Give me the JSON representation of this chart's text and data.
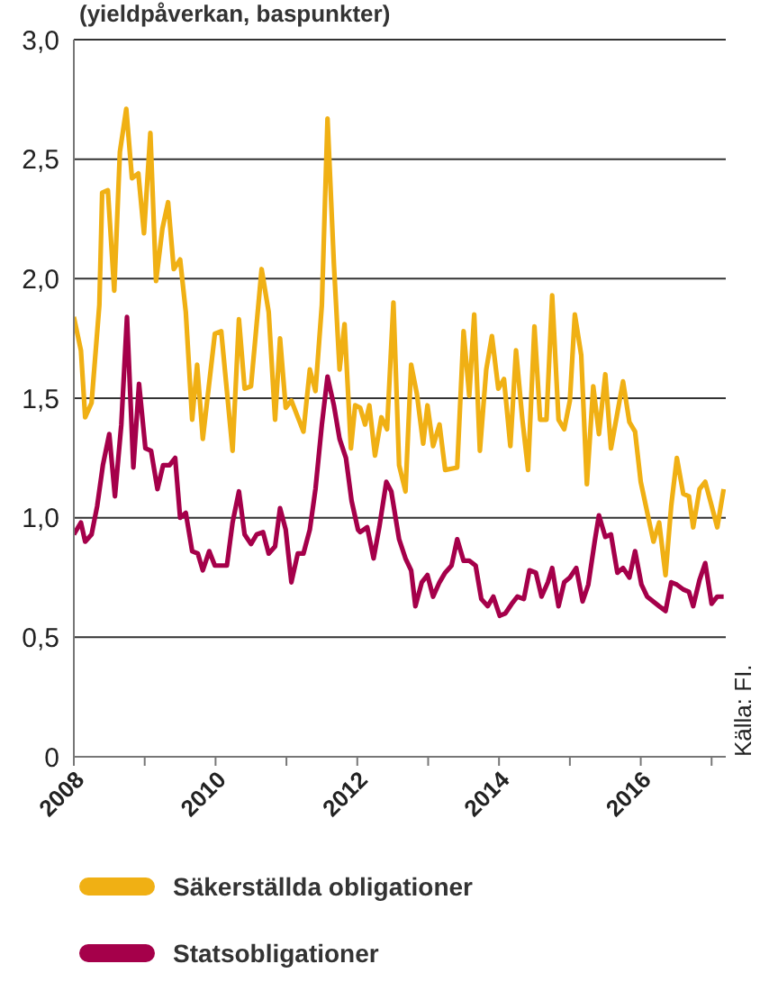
{
  "chart_data": {
    "type": "line",
    "title": "(yieldpåverkan, baspunkter)",
    "annotations": [
      "Källa: FI."
    ],
    "xlim": [
      2008,
      2017.2
    ],
    "xticks": [
      2008,
      {
        "value": 2009,
        "label": null
      },
      2010,
      {
        "value": 2011,
        "label": null
      },
      2012,
      {
        "value": 2013,
        "label": null
      },
      2014,
      {
        "value": 2015,
        "label": null
      },
      2016,
      {
        "value": 2017,
        "label": null
      }
    ],
    "ylim": [
      0,
      3
    ],
    "yticks": [
      {
        "value": 0,
        "label": "0"
      },
      {
        "value": 0.5,
        "label": "0,5"
      },
      {
        "value": 1,
        "label": "1,0"
      },
      {
        "value": 1.5,
        "label": "1,5"
      },
      {
        "value": 2,
        "label": "2,0"
      },
      {
        "value": 2.5,
        "label": "2,5"
      },
      {
        "value": 3,
        "label": "3,0"
      }
    ],
    "grid": "y",
    "legend": "bottom",
    "marker": "none",
    "line_style": "solid",
    "series": [
      {
        "name": "Säkerställda obligationer",
        "color": "#f0b014",
        "x": [
          2008.0,
          2008.1,
          2008.16,
          2008.25,
          2008.36,
          2008.4,
          2008.48,
          2008.57,
          2008.65,
          2008.74,
          2008.82,
          2008.91,
          2008.99,
          2009.08,
          2009.16,
          2009.25,
          2009.33,
          2009.41,
          2009.5,
          2009.58,
          2009.67,
          2009.74,
          2009.82,
          2009.99,
          2010.08,
          2010.24,
          2010.33,
          2010.41,
          2010.5,
          2010.65,
          2010.75,
          2010.84,
          2010.91,
          2010.99,
          2011.07,
          2011.24,
          2011.33,
          2011.41,
          2011.5,
          2011.58,
          2011.67,
          2011.75,
          2011.82,
          2011.91,
          2011.97,
          2012.04,
          2012.11,
          2012.17,
          2012.25,
          2012.34,
          2012.42,
          2012.51,
          2012.59,
          2012.68,
          2012.76,
          2012.84,
          2012.93,
          2012.99,
          2013.07,
          2013.16,
          2013.24,
          2013.41,
          2013.5,
          2013.58,
          2013.65,
          2013.73,
          2013.82,
          2013.9,
          2013.99,
          2014.07,
          2014.16,
          2014.24,
          2014.33,
          2014.41,
          2014.5,
          2014.58,
          2014.67,
          2014.75,
          2014.84,
          2014.92,
          2015.0,
          2015.07,
          2015.16,
          2015.24,
          2015.33,
          2015.41,
          2015.5,
          2015.58,
          2015.75,
          2015.84,
          2015.92,
          2016.0,
          2016.18,
          2016.26,
          2016.35,
          2016.43,
          2016.51,
          2016.6,
          2016.68,
          2016.74,
          2016.83,
          2016.91,
          2017.0,
          2017.08,
          2017.17
        ],
        "values": [
          1.84,
          1.7,
          1.42,
          1.48,
          1.89,
          2.36,
          2.37,
          1.95,
          2.53,
          2.71,
          2.42,
          2.44,
          2.19,
          2.61,
          1.99,
          2.21,
          2.32,
          2.04,
          2.08,
          1.86,
          1.41,
          1.64,
          1.33,
          1.77,
          1.78,
          1.28,
          1.83,
          1.54,
          1.55,
          2.04,
          1.86,
          1.41,
          1.75,
          1.46,
          1.49,
          1.36,
          1.62,
          1.53,
          1.89,
          2.67,
          2.06,
          1.62,
          1.81,
          1.29,
          1.47,
          1.46,
          1.39,
          1.47,
          1.26,
          1.42,
          1.37,
          1.9,
          1.22,
          1.11,
          1.64,
          1.52,
          1.31,
          1.47,
          1.3,
          1.39,
          1.2,
          1.21,
          1.78,
          1.51,
          1.85,
          1.28,
          1.62,
          1.76,
          1.54,
          1.58,
          1.3,
          1.7,
          1.41,
          1.2,
          1.8,
          1.41,
          1.41,
          1.93,
          1.41,
          1.37,
          1.49,
          1.85,
          1.68,
          1.14,
          1.55,
          1.35,
          1.6,
          1.29,
          1.57,
          1.4,
          1.36,
          1.15,
          0.9,
          0.98,
          0.76,
          1.05,
          1.25,
          1.1,
          1.09,
          0.96,
          1.12,
          1.15,
          1.05,
          0.96,
          1.12
        ]
      },
      {
        "name": "Statsobligationer",
        "color": "#a5004a",
        "x": [
          2008.0,
          2008.1,
          2008.16,
          2008.25,
          2008.33,
          2008.41,
          2008.5,
          2008.58,
          2008.67,
          2008.75,
          2008.84,
          2008.92,
          2009.01,
          2009.09,
          2009.18,
          2009.26,
          2009.35,
          2009.43,
          2009.5,
          2009.58,
          2009.67,
          2009.75,
          2009.82,
          2009.91,
          2009.99,
          2010.16,
          2010.24,
          2010.33,
          2010.41,
          2010.5,
          2010.58,
          2010.67,
          2010.75,
          2010.84,
          2010.91,
          2010.99,
          2011.07,
          2011.16,
          2011.24,
          2011.33,
          2011.41,
          2011.5,
          2011.58,
          2011.67,
          2011.75,
          2011.84,
          2011.92,
          2012.01,
          2012.04,
          2012.14,
          2012.23,
          2012.31,
          2012.41,
          2012.48,
          2012.59,
          2012.68,
          2012.76,
          2012.82,
          2012.91,
          2012.99,
          2013.07,
          2013.16,
          2013.24,
          2013.33,
          2013.41,
          2013.5,
          2013.58,
          2013.67,
          2013.75,
          2013.84,
          2013.92,
          2014.01,
          2014.09,
          2014.18,
          2014.26,
          2014.35,
          2014.43,
          2014.52,
          2014.6,
          2014.69,
          2014.75,
          2014.84,
          2014.92,
          2015.0,
          2015.09,
          2015.18,
          2015.26,
          2015.35,
          2015.41,
          2015.5,
          2015.58,
          2015.67,
          2015.75,
          2015.84,
          2015.92,
          2016.01,
          2016.09,
          2016.26,
          2016.35,
          2016.43,
          2016.51,
          2016.6,
          2016.68,
          2016.74,
          2016.83,
          2016.91,
          2017.0,
          2017.08,
          2017.17
        ],
        "values": [
          0.93,
          0.98,
          0.9,
          0.93,
          1.05,
          1.22,
          1.35,
          1.09,
          1.39,
          1.84,
          1.21,
          1.56,
          1.29,
          1.28,
          1.12,
          1.22,
          1.22,
          1.25,
          1.0,
          1.02,
          0.86,
          0.85,
          0.78,
          0.86,
          0.8,
          0.8,
          0.98,
          1.11,
          0.93,
          0.89,
          0.93,
          0.94,
          0.85,
          0.88,
          1.04,
          0.95,
          0.73,
          0.85,
          0.85,
          0.95,
          1.12,
          1.39,
          1.59,
          1.47,
          1.33,
          1.25,
          1.07,
          0.95,
          0.94,
          0.96,
          0.83,
          0.96,
          1.15,
          1.11,
          0.91,
          0.83,
          0.78,
          0.63,
          0.73,
          0.76,
          0.67,
          0.73,
          0.77,
          0.8,
          0.91,
          0.82,
          0.82,
          0.8,
          0.66,
          0.63,
          0.67,
          0.59,
          0.6,
          0.64,
          0.67,
          0.66,
          0.78,
          0.77,
          0.67,
          0.73,
          0.79,
          0.63,
          0.73,
          0.75,
          0.79,
          0.65,
          0.72,
          0.9,
          1.01,
          0.92,
          0.93,
          0.77,
          0.79,
          0.75,
          0.86,
          0.72,
          0.67,
          0.63,
          0.61,
          0.73,
          0.72,
          0.7,
          0.69,
          0.63,
          0.74,
          0.81,
          0.64,
          0.67,
          0.67
        ]
      }
    ]
  }
}
